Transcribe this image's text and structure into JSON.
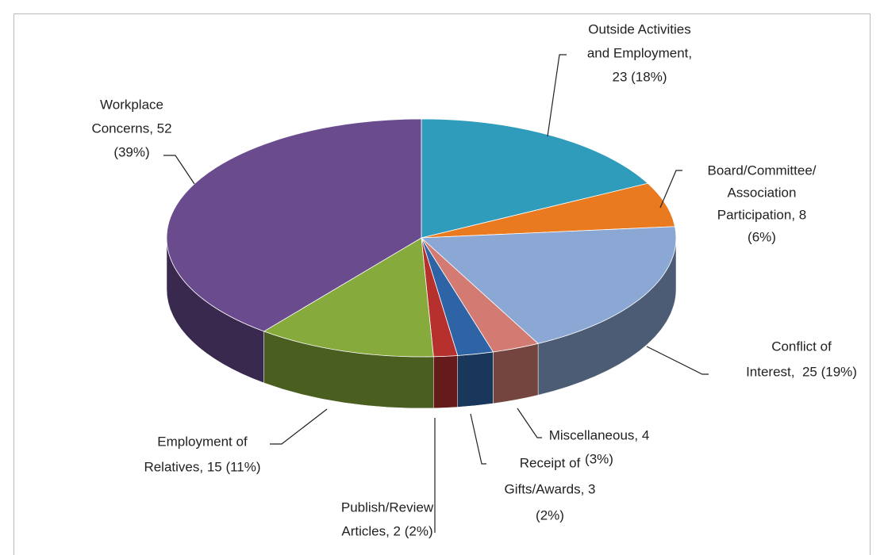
{
  "chart_data": {
    "type": "pie3d",
    "values": [
      23,
      8,
      25,
      4,
      3,
      2,
      15,
      52
    ],
    "value_labels": [
      [
        "Outside Activities",
        "and Employment,",
        "23 (18%)"
      ],
      [
        "Board/Committee/",
        "Association",
        "Participation, 8",
        "(6%)"
      ],
      [
        "Conflict of",
        "Interest,  25 (19%)"
      ],
      [
        "Miscellaneous, 4",
        "(3%)"
      ],
      [
        "Receipt of",
        "Gifts/Awards, 3",
        "(2%)"
      ],
      [
        "Publish/Review",
        "Articles, 2 (2%)"
      ],
      [
        "Employment of",
        "Relatives, 15 (11%)"
      ],
      [
        "Workplace",
        "Concerns, 52",
        "(39%)"
      ]
    ],
    "colors": [
      "#2f9cbb",
      "#e97a1f",
      "#8ba7d4",
      "#d37b73",
      "#2e63a6",
      "#b6312d",
      "#86aa3b",
      "#6a4b8e"
    ]
  }
}
